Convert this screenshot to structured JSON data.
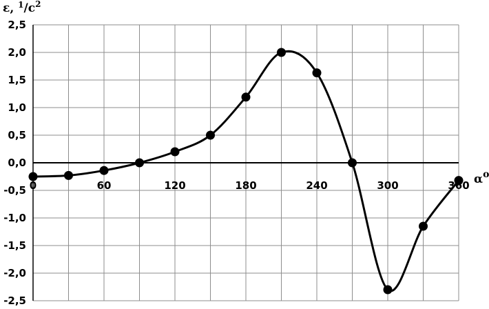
{
  "chart_data": {
    "type": "line",
    "title": "",
    "ylabel_main": "ε, ",
    "ylabel_unit_num": "1",
    "ylabel_unit_den": "/c",
    "ylabel_unit_exp": "2",
    "xlabel_main": "α",
    "xlabel_exp": "o",
    "xlim": [
      0,
      360
    ],
    "ylim": [
      -2.5,
      2.5
    ],
    "xticks": [
      0,
      60,
      120,
      180,
      240,
      300,
      360
    ],
    "xtick_labels": [
      "0",
      "60",
      "120",
      "180",
      "240",
      "300",
      "360"
    ],
    "yticks": [
      2.5,
      2.0,
      1.5,
      1.0,
      0.5,
      0.0,
      -0.5,
      -1.0,
      -1.5,
      -2.0,
      -2.5
    ],
    "ytick_labels": [
      "2,5",
      "2,0",
      "1,5",
      "1,0",
      "0,5",
      "0,0",
      "-0,5",
      "-1,0",
      "-1,5",
      "-2,0",
      "-2,5"
    ],
    "xgrid_every": 30,
    "grid": true,
    "series": [
      {
        "x": [
          0,
          30,
          60,
          90,
          120,
          150,
          180,
          210,
          240,
          270,
          300,
          330,
          360
        ],
        "y": [
          -0.25,
          -0.23,
          -0.14,
          0.0,
          0.2,
          0.5,
          1.19,
          2.0,
          1.63,
          0.0,
          -2.3,
          -1.15,
          -0.32
        ],
        "color": "#000000"
      }
    ]
  }
}
